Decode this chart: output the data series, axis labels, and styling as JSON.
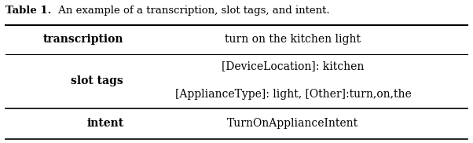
{
  "title_bold": "Table 1.",
  "title_rest": " An example of a transcription, slot tags, and intent.",
  "rows": [
    {
      "label": "transcription",
      "content_lines": [
        "turn on the kitchen light"
      ]
    },
    {
      "label": "slot tags",
      "content_lines": [
        "[DeviceLocation]: kitchen",
        "[ApplianceType]: light, [Other]:turn,on,the"
      ]
    },
    {
      "label": "intent",
      "content_lines": [
        "TurnOnApplianceIntent"
      ]
    }
  ],
  "bg_color": "#ffffff",
  "text_color": "#000000",
  "title_fontsize": 9.5,
  "label_fontsize": 10,
  "content_fontsize": 10,
  "fig_width": 6.02,
  "fig_height": 1.82
}
